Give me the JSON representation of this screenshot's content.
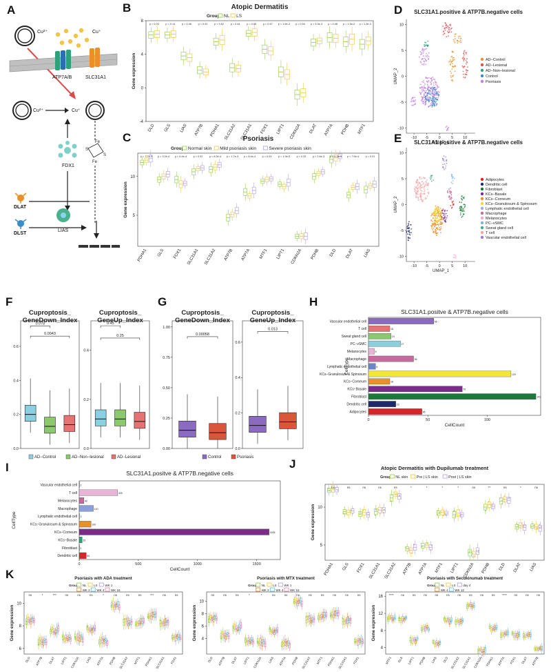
{
  "panels": {
    "A": {
      "letter": "A",
      "cu2_top": "Cu²⁺",
      "cu1_top": "Cu⁺",
      "atp7ab": "ATP7A/B",
      "slc31a1": "SLC31A1",
      "cu2_mid": "Cu²⁺",
      "cu1_mid": "Cu⁺",
      "fdx1": "FDX1",
      "fes1": "Fe",
      "fes2": "S",
      "fes3": "Fe",
      "fes4": "S",
      "dlat": "DLAT",
      "lias": "LIAS",
      "dlst": "DLST"
    },
    "B": {
      "letter": "B"
    },
    "C": {
      "letter": "C"
    },
    "D": {
      "letter": "D"
    },
    "E": {
      "letter": "E"
    },
    "F": {
      "letter": "F",
      "legend": [
        "AD−Control",
        "AD−Non−lesional",
        "AD−Lesional"
      ]
    },
    "G": {
      "letter": "G",
      "legend": [
        "Control",
        "Psoriasis"
      ]
    },
    "H": {
      "letter": "H",
      "tag": "AD"
    },
    "I": {
      "letter": "I",
      "tag": "Ps"
    },
    "J": {
      "letter": "J"
    },
    "K": {
      "letter": "K"
    }
  },
  "chart_data": [
    {
      "id": "B",
      "type": "box",
      "title": "Atopic Dermatitis",
      "legend_title": "Group",
      "legend": [
        "NL",
        "LS"
      ],
      "ylabel": "Gene expression",
      "ylim": [
        -4,
        8
      ],
      "yticks": [
        -4,
        0,
        4,
        8
      ],
      "categories": [
        "DLD",
        "GLS",
        "LIAS",
        "ATP7B",
        "PDHA1",
        "SLC31A2",
        "SLC31A1",
        "FDX1",
        "LIPT1",
        "CDKN2A",
        "DLAT",
        "ATP7A",
        "PDHB",
        "MTF1"
      ],
      "pvalues": [
        "p = 0.03",
        "p = 0.14",
        "p = 0.46",
        "p = 0.02",
        "p = 0.52",
        "p = 0.44",
        "p = 0.05",
        "p = 0.57",
        "p = 1.6e-3",
        "p = 0.54",
        "p = 5.3e-3",
        "p = 0.48",
        "p = 1.5e-2",
        "p = 1.3e-3"
      ],
      "series": [
        {
          "name": "NL",
          "values": [
            6.3,
            6.3,
            3.8,
            2.1,
            5.5,
            2.4,
            6.5,
            4.6,
            1.9,
            -0.8,
            5.4,
            6.0,
            5.5,
            5.2
          ]
        },
        {
          "name": "LS",
          "values": [
            6.4,
            6.4,
            3.6,
            1.9,
            5.7,
            2.3,
            6.6,
            4.4,
            1.6,
            -0.6,
            5.6,
            5.9,
            5.8,
            5.6
          ]
        }
      ]
    },
    {
      "id": "C",
      "type": "box",
      "title": "Psoriasis",
      "legend_title": "Group",
      "legend": [
        "Normal skin",
        "Mild psoriasis skin",
        "Severe psoriasis skin"
      ],
      "ylabel": "Gene expression",
      "ylim": [
        1,
        13
      ],
      "yticks": [
        5,
        10
      ],
      "categories": [
        "PDHA1",
        "GLS",
        "FDX1",
        "SLC31A1",
        "SLC31A2",
        "ATP7B",
        "ATP7A",
        "MTF1",
        "LIPT1",
        "CDKN2A",
        "PDHB",
        "DLD",
        "DLAT",
        "LIAS"
      ],
      "pvalues": [
        "p = 7.7e-5",
        "p = 3.2e-4",
        "p = 6.4e-4",
        "p = 0.02",
        "p = 8.3e-4",
        "p = 1.7e-3",
        "p = 8.4e-4",
        "p = 0.03",
        "p = 1.3e-5",
        "p = 0.33",
        "p = 2.6e-3",
        "p = 6.3e-3",
        "p = 7.6e-4",
        "p = 0.01"
      ],
      "series": [
        {
          "name": "Normal skin",
          "values": [
            11.8,
            9.6,
            9.6,
            10.6,
            10.9,
            4.7,
            8.0,
            9.4,
            9.0,
            2.3,
            10.0,
            12.2,
            7.6,
            8.3
          ]
        },
        {
          "name": "Mild psoriasis skin",
          "values": [
            12.1,
            10.0,
            9.0,
            11.0,
            11.2,
            5.1,
            7.5,
            9.6,
            8.7,
            2.3,
            10.4,
            12.4,
            8.6,
            8.8
          ]
        },
        {
          "name": "Severe psoriasis skin",
          "values": [
            12.3,
            10.3,
            9.1,
            11.1,
            11.5,
            5.6,
            8.2,
            9.7,
            9.2,
            2.3,
            10.6,
            12.6,
            8.7,
            9.0
          ]
        }
      ]
    },
    {
      "id": "D",
      "type": "scatter",
      "title": "SLC31A1.positive & ATP7B.negative cells",
      "xlabel": "UMAP_1",
      "ylabel": "UMAP_2",
      "xlim": [
        -13,
        14
      ],
      "ylim": [
        -11,
        11
      ],
      "xticks": [
        -10,
        -5,
        0,
        5,
        10
      ],
      "yticks": [
        -10,
        -5,
        0,
        5,
        10
      ],
      "legend": [
        "AD−Control",
        "AD−Lesional",
        "AD−Non−lesional",
        "Control",
        "Psoriasis"
      ]
    },
    {
      "id": "E",
      "type": "scatter",
      "title": "SLC31A1.positive & ATP7B.negative cells",
      "xlabel": "UMAP_1",
      "ylabel": "UMAP_2",
      "xlim": [
        -13,
        14
      ],
      "ylim": [
        -11,
        11
      ],
      "xticks": [
        -10,
        -5,
        0,
        5,
        10
      ],
      "yticks": [
        -10,
        -5,
        0,
        5,
        10
      ],
      "legend": [
        "Adipocytes",
        "Dendritic cell",
        "Fibroblast",
        "KCs−Basale",
        "KCs−Corneum",
        "KCs−Granulosum & Spinosum",
        "Lymphatic endothelial cell",
        "Macrophage",
        "Melanocytes",
        "PC−vSMC",
        "Sweat gland cell",
        "T cell",
        "Vascular endothelial cell"
      ]
    },
    {
      "id": "F1",
      "type": "box",
      "title_lines": [
        "Cuproptosis_",
        "GeneDown_Index"
      ],
      "yticks": [
        "0.0",
        "0.2",
        "0.4",
        "0.6"
      ],
      "ylim": [
        0,
        0.75
      ],
      "categories": [
        "AD−Control",
        "AD−Non−lesional",
        "AD−Lesional"
      ],
      "values": [
        0.2,
        0.13,
        0.14
      ],
      "brackets": [
        {
          "label": "0.078",
          "from": 0,
          "to": 1,
          "y": 0.72
        },
        {
          "label": "0.0043",
          "from": 0,
          "to": 2,
          "y": 0.66
        }
      ]
    },
    {
      "id": "F2",
      "type": "box",
      "title_lines": [
        "Cuproptosis_",
        "GeneUp_Index"
      ],
      "yticks": [
        "0.0",
        "0.2",
        "0.4"
      ],
      "ylim": [
        0,
        0.52
      ],
      "categories": [
        "AD−Control",
        "AD−Non−lesional",
        "AD−Lesional"
      ],
      "values": [
        0.12,
        0.12,
        0.11
      ],
      "brackets": [
        {
          "label": "0.45",
          "from": 0,
          "to": 1,
          "y": 0.5
        },
        {
          "label": "0.25",
          "from": 0,
          "to": 2,
          "y": 0.45
        }
      ]
    },
    {
      "id": "G1",
      "type": "box",
      "title_lines": [
        "Cuproptosis_",
        "GeneDown_Index"
      ],
      "yticks": [
        "0.00",
        "0.25",
        "0.50",
        "0.75",
        "1.00"
      ],
      "ylim": [
        0,
        1.05
      ],
      "categories": [
        "Control",
        "Psoriasis"
      ],
      "values": [
        0.15,
        0.13
      ],
      "brackets": [
        {
          "label": "0.00058",
          "from": 0,
          "to": 1,
          "y": 0.92
        }
      ]
    },
    {
      "id": "G2",
      "type": "box",
      "title_lines": [
        "Cuproptosis_",
        "GeneUp_Index"
      ],
      "yticks": [
        "0.0",
        "0.2",
        "0.4",
        "0.6"
      ],
      "ylim": [
        0,
        0.72
      ],
      "categories": [
        "Control",
        "Psoriasis"
      ],
      "values": [
        0.13,
        0.15
      ],
      "brackets": [
        {
          "label": "0.013",
          "from": 0,
          "to": 1,
          "y": 0.66
        }
      ]
    },
    {
      "id": "H",
      "type": "bar",
      "title": "SLC31A1.positve & ATP7B.negative cells",
      "xlabel": "CellCount",
      "ylabel": "CellType",
      "xlim": [
        0,
        145
      ],
      "xticks": [
        0,
        50,
        100
      ],
      "categories": [
        "Vascular endothelial cell",
        "T cell",
        "Sweat gland cell",
        "PC−vSMC",
        "Melanocytes",
        "Macrophage",
        "Lymphatic endothelial cell",
        "KCs−Granulosum & Spinosum",
        "KCs−Corneum",
        "KCs−Basale",
        "Fibroblast",
        "Dendritic cell",
        "Adipocytes"
      ],
      "values": [
        55,
        18,
        19,
        27,
        5,
        38,
        6,
        120,
        18,
        79,
        141,
        23,
        45
      ]
    },
    {
      "id": "I",
      "type": "bar",
      "title": "SLC31A1.positve & ATP7B.negative cells",
      "xlabel": "CellCount",
      "ylabel": "CellType",
      "xlim": [
        0,
        1700
      ],
      "xticks": [
        0,
        500,
        1000,
        1500
      ],
      "categories": [
        "Vascular endothelial cell",
        "T cell",
        "Melanocytes",
        "Macrophage",
        "Lymphatic endothelial cell",
        "KCs−Granulosum & Spinosum",
        "KCs−Corneum",
        "KCs−Basale",
        "Fibroblast",
        "Dendritic cell"
      ],
      "values": [
        2,
        325,
        40,
        120,
        3,
        100,
        1605,
        25,
        2,
        60
      ]
    },
    {
      "id": "J",
      "type": "box",
      "title": "Atopic Dermatitis with Dupilumab treatment",
      "legend_title": "Group",
      "legend": [
        "NL skin",
        "Pre | LS skin",
        "Post | LS skin"
      ],
      "ylabel": "Gene expression",
      "ylim": [
        3,
        13
      ],
      "yticks": [
        5,
        10
      ],
      "categories": [
        "PDHA1",
        "GLS",
        "FDX1",
        "SLC31A1",
        "SLC31A2",
        "ATP7B",
        "ATP7A",
        "MTF1",
        "LIPT1",
        "CDKN2A",
        "PDHB",
        "DLD",
        "DLAT",
        "LIAS"
      ],
      "sig": [
        "ns",
        "ns",
        "ns",
        "ns",
        "ns",
        "*",
        "*",
        "*",
        "*",
        "ns",
        "**",
        "ns",
        "*",
        "ns"
      ],
      "series": [
        {
          "name": "NL skin",
          "values": [
            12.2,
            9.4,
            9.1,
            9.4,
            11.2,
            4.5,
            4.9,
            9.2,
            9.0,
            4.0,
            10.0,
            10.8,
            7.4,
            7.5
          ]
        },
        {
          "name": "Pre | LS skin",
          "values": [
            12.4,
            9.3,
            9.3,
            9.6,
            11.7,
            4.3,
            5.0,
            9.3,
            9.2,
            3.8,
            10.3,
            11.0,
            7.6,
            7.4
          ]
        },
        {
          "name": "Post | LS skin",
          "values": [
            12.3,
            9.5,
            9.0,
            9.6,
            11.4,
            4.7,
            4.7,
            9.2,
            9.0,
            4.2,
            10.1,
            10.9,
            7.3,
            7.2
          ]
        }
      ]
    },
    {
      "id": "K1",
      "type": "box",
      "title": "Psoriasis with ADA treatment",
      "legend_title": "Group",
      "legend": [
        "NL",
        "LS",
        "WK 1",
        "WK 2",
        "WK 4",
        "WK 16"
      ],
      "ylabel": "Gene expression",
      "ylim": [
        5.5,
        11
      ],
      "yticks": [
        6,
        8,
        10
      ],
      "categories": [
        "DLD",
        "ATP7B",
        "DLAT",
        "LIPT1",
        "CDKN2A",
        "LIAS",
        "ATP7A",
        "PDHB",
        "SLC31A2",
        "MTF1",
        "PDHA1",
        "SLC31A1",
        "FDX1"
      ],
      "sig": [
        "ns",
        "*",
        "***",
        "ns",
        "ns",
        "ns",
        "*",
        "ns",
        "ns",
        "ns",
        "***",
        "ns",
        "ns"
      ],
      "values": [
        8.5,
        6.6,
        7.6,
        6.9,
        6.9,
        7.7,
        6.6,
        9.8,
        8.3,
        8.3,
        8.9,
        8.3,
        6.9
      ]
    },
    {
      "id": "K2",
      "type": "box",
      "title": "Psoriasis with MTX treatment",
      "legend_title": "Group",
      "legend": [
        "NL",
        "LS",
        "WK 1",
        "WK 2",
        "WK 4",
        "WK 16"
      ],
      "ylabel": "Gene expression",
      "ylim": [
        1.5,
        11.5
      ],
      "yticks": [
        4,
        6,
        8,
        10
      ],
      "categories": [
        "DLD",
        "ATP7B",
        "DLAT",
        "LIPT1",
        "CDKN2A",
        "LIAS",
        "ATP7A",
        "PDHB",
        "SLC31A2",
        "MTF1",
        "PDHA1",
        "SLC31A1",
        "FDX1"
      ],
      "sig": [
        "ns",
        "ns",
        "ns",
        "*",
        "*",
        "ns",
        "ns",
        "ns",
        "ns",
        "ns",
        "ns",
        "ns",
        "ns"
      ],
      "values": [
        7.3,
        4.5,
        5.8,
        3.6,
        3.3,
        5.2,
        3.1,
        9.9,
        7.0,
        7.6,
        7.9,
        6.9,
        3.4
      ]
    },
    {
      "id": "K3",
      "type": "box",
      "title": "Psoriasis with Secukinumab treatment",
      "legend_title": "Group",
      "legend": [
        "NL",
        "LS",
        "day 4",
        "WK 4",
        "WK 12"
      ],
      "ylabel": "Gene expression",
      "ylim": [
        2.5,
        17
      ],
      "yticks": [
        4,
        8,
        12,
        16
      ],
      "categories": [
        "MTF1",
        "GLS",
        "LIPT1",
        "PDHB",
        "LIAS",
        "DLD",
        "SLC31A2",
        "SLC31A1",
        "CDKN2A",
        "PDHA1",
        "ATP7A",
        "FDX1",
        "DLAT",
        "ATP7B"
      ],
      "sig": [
        "****",
        "ns",
        "ns",
        "ns",
        "ns",
        "ns",
        "ns",
        "ns",
        "ns",
        "ns",
        "****",
        "ns",
        "ns",
        "ns"
      ],
      "values": [
        10.8,
        10.6,
        5.8,
        8.5,
        5.0,
        10.2,
        10.3,
        14.0,
        3.2,
        8.5,
        7.2,
        7.0,
        6.6,
        4.0
      ]
    }
  ]
}
